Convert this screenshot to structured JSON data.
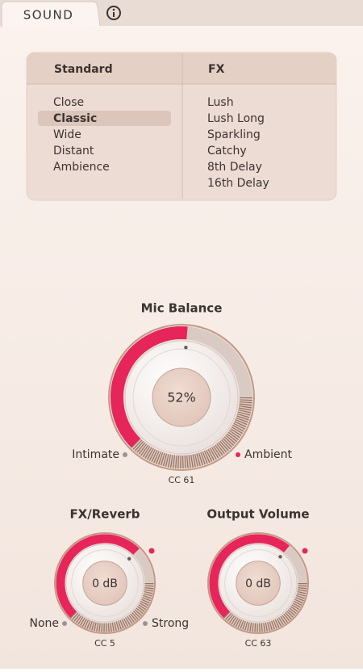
{
  "tab": {
    "title": "SOUND"
  },
  "presets": {
    "columns": [
      {
        "header": "Standard",
        "items": [
          "Close",
          "Classic",
          "Wide",
          "Distant",
          "Ambience"
        ]
      },
      {
        "header": "FX",
        "items": [
          "Lush",
          "Lush Long",
          "Sparkling",
          "Catchy",
          "8th Delay",
          "16th Delay"
        ]
      }
    ]
  },
  "knobs": [
    {
      "title": "Mic Balance",
      "value": "52%",
      "min_label": "Intimate",
      "max_label": "Ambient",
      "cc": "CC 61"
    },
    {
      "title": "FX/Reverb",
      "value": "0 dB",
      "min_label": "None",
      "max_label": "Strong",
      "cc": "CC 5"
    },
    {
      "title": "Output Volume",
      "value": "0 dB",
      "cc": "CC 63"
    }
  ]
}
